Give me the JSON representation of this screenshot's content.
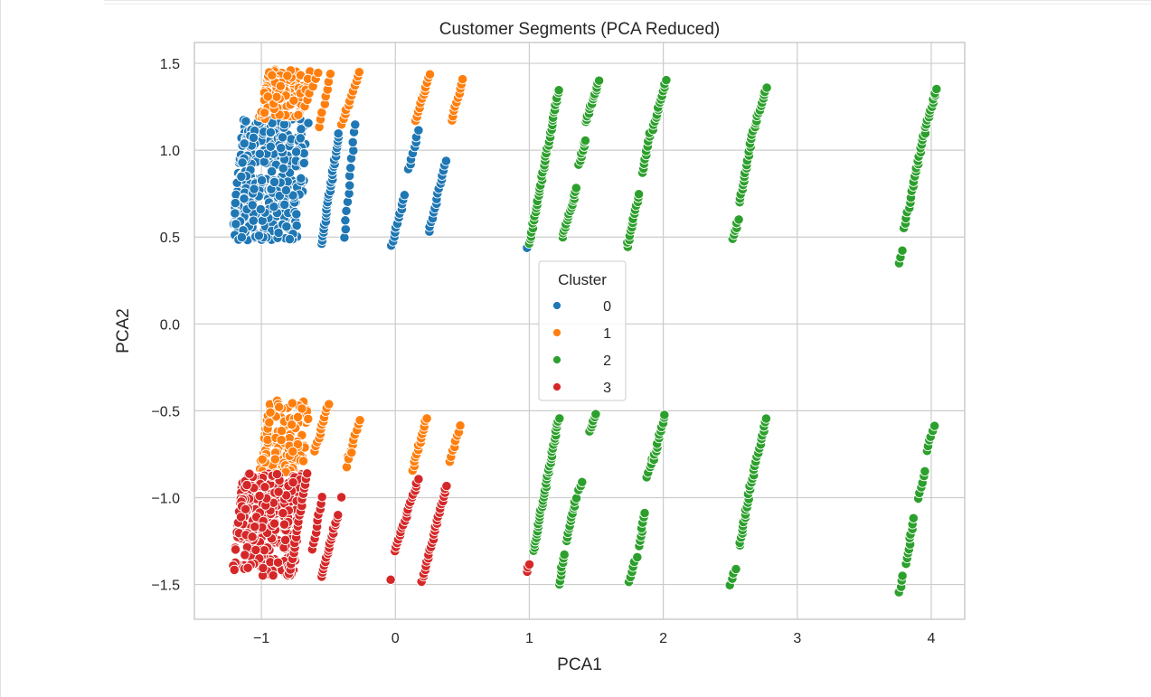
{
  "chart_data": {
    "type": "scatter",
    "title": "Customer Segments (PCA Reduced)",
    "xlabel": "PCA1",
    "ylabel": "PCA2",
    "xlim": [
      -1.5,
      4.25
    ],
    "ylim": [
      -1.7,
      1.62
    ],
    "xticks": [
      -1,
      0,
      1,
      2,
      3,
      4
    ],
    "yticks": [
      -1.5,
      -1.0,
      -0.5,
      0.0,
      0.5,
      1.0,
      1.5
    ],
    "xtick_labels": [
      "−1",
      "0",
      "1",
      "2",
      "3",
      "4"
    ],
    "ytick_labels": [
      "−1.5",
      "−1.0",
      "−0.5",
      "0.0",
      "0.5",
      "1.0",
      "1.5"
    ],
    "grid": true,
    "legend": {
      "title": "Cluster",
      "placement": "center"
    },
    "series": [
      {
        "name": "0",
        "color": "#1f77b4",
        "clusters": [
          {
            "x0": -1.22,
            "x1": -0.72,
            "y0": 0.48,
            "y1": 1.18,
            "n": 360
          }
        ],
        "lines": [
          {
            "x0": -0.55,
            "y0": 0.46,
            "x1": -0.42,
            "y1": 1.1,
            "n": 30
          },
          {
            "x0": -0.38,
            "y0": 0.5,
            "x1": -0.3,
            "y1": 1.15,
            "n": 14
          },
          {
            "x0": -0.03,
            "y0": 0.45,
            "x1": 0.07,
            "y1": 0.74,
            "n": 12
          },
          {
            "x0": 0.1,
            "y0": 0.89,
            "x1": 0.17,
            "y1": 1.11,
            "n": 8
          },
          {
            "x0": 0.25,
            "y0": 0.53,
            "x1": 0.38,
            "y1": 0.94,
            "n": 16
          },
          {
            "x0": 0.98,
            "y0": 0.44,
            "x1": 0.98,
            "y1": 0.44,
            "n": 1
          }
        ]
      },
      {
        "name": "1",
        "color": "#ff7f0e",
        "clusters": [
          {
            "x0": -1.02,
            "x1": -0.7,
            "y0": 1.18,
            "y1": 1.47,
            "n": 120
          },
          {
            "x0": -1.02,
            "x1": -0.7,
            "y0": -0.86,
            "y1": -0.44,
            "n": 140
          }
        ],
        "lines": [
          {
            "x0": -0.68,
            "y0": 1.25,
            "x1": -0.58,
            "y1": 1.45,
            "n": 6
          },
          {
            "x0": -0.57,
            "y0": 1.13,
            "x1": -0.48,
            "y1": 1.44,
            "n": 8
          },
          {
            "x0": -0.4,
            "y0": 1.15,
            "x1": -0.27,
            "y1": 1.45,
            "n": 12
          },
          {
            "x0": 0.15,
            "y0": 1.17,
            "x1": 0.26,
            "y1": 1.44,
            "n": 12
          },
          {
            "x0": 0.42,
            "y0": 1.17,
            "x1": 0.5,
            "y1": 1.41,
            "n": 10
          },
          {
            "x0": -0.6,
            "y0": -0.73,
            "x1": -0.5,
            "y1": -0.46,
            "n": 12
          },
          {
            "x0": -0.35,
            "y0": -0.76,
            "x1": -0.26,
            "y1": -0.55,
            "n": 8
          },
          {
            "x0": -0.36,
            "y0": -0.82,
            "x1": -0.33,
            "y1": -0.74,
            "n": 3
          },
          {
            "x0": 0.13,
            "y0": -0.84,
            "x1": 0.23,
            "y1": -0.54,
            "n": 14
          },
          {
            "x0": 0.41,
            "y0": -0.79,
            "x1": 0.48,
            "y1": -0.59,
            "n": 8
          }
        ]
      },
      {
        "name": "2",
        "color": "#2ca02c",
        "lines": [
          {
            "x0": 1.0,
            "y0": 0.46,
            "x1": 1.22,
            "y1": 1.35,
            "n": 40
          },
          {
            "x0": 1.25,
            "y0": 0.5,
            "x1": 1.35,
            "y1": 0.78,
            "n": 16
          },
          {
            "x0": 1.37,
            "y0": 0.92,
            "x1": 1.42,
            "y1": 1.06,
            "n": 8
          },
          {
            "x0": 1.42,
            "y0": 1.16,
            "x1": 1.52,
            "y1": 1.4,
            "n": 14
          },
          {
            "x0": 1.73,
            "y0": 0.44,
            "x1": 1.82,
            "y1": 0.75,
            "n": 14
          },
          {
            "x0": 1.85,
            "y0": 0.87,
            "x1": 1.9,
            "y1": 1.1,
            "n": 10
          },
          {
            "x0": 1.92,
            "y0": 1.12,
            "x1": 2.02,
            "y1": 1.4,
            "n": 14
          },
          {
            "x0": 2.52,
            "y0": 0.49,
            "x1": 2.56,
            "y1": 0.6,
            "n": 6
          },
          {
            "x0": 2.57,
            "y0": 0.7,
            "x1": 2.67,
            "y1": 1.11,
            "n": 18
          },
          {
            "x0": 2.68,
            "y0": 1.13,
            "x1": 2.77,
            "y1": 1.36,
            "n": 12
          },
          {
            "x0": 3.76,
            "y0": 0.35,
            "x1": 3.78,
            "y1": 0.42,
            "n": 3
          },
          {
            "x0": 3.8,
            "y0": 0.55,
            "x1": 3.87,
            "y1": 0.82,
            "n": 10
          },
          {
            "x0": 3.88,
            "y0": 0.85,
            "x1": 3.95,
            "y1": 1.1,
            "n": 12
          },
          {
            "x0": 3.96,
            "y0": 1.13,
            "x1": 4.04,
            "y1": 1.35,
            "n": 12
          },
          {
            "x0": 1.03,
            "y0": -1.31,
            "x1": 1.22,
            "y1": -0.54,
            "n": 40
          },
          {
            "x0": 1.22,
            "y0": -1.5,
            "x1": 1.26,
            "y1": -1.33,
            "n": 8
          },
          {
            "x0": 1.28,
            "y0": -1.25,
            "x1": 1.35,
            "y1": -1.0,
            "n": 12
          },
          {
            "x0": 1.37,
            "y0": -0.96,
            "x1": 1.4,
            "y1": -0.91,
            "n": 3
          },
          {
            "x0": 1.45,
            "y0": -0.62,
            "x1": 1.5,
            "y1": -0.52,
            "n": 6
          },
          {
            "x0": 1.74,
            "y0": -1.49,
            "x1": 1.8,
            "y1": -1.34,
            "n": 6
          },
          {
            "x0": 1.82,
            "y0": -1.28,
            "x1": 1.86,
            "y1": -1.09,
            "n": 8
          },
          {
            "x0": 1.88,
            "y0": -0.88,
            "x1": 1.93,
            "y1": -0.75,
            "n": 6
          },
          {
            "x0": 1.93,
            "y0": -0.78,
            "x1": 2.01,
            "y1": -0.52,
            "n": 12
          },
          {
            "x0": 2.5,
            "y0": -1.5,
            "x1": 2.54,
            "y1": -1.41,
            "n": 4
          },
          {
            "x0": 2.57,
            "y0": -1.28,
            "x1": 2.66,
            "y1": -0.89,
            "n": 18
          },
          {
            "x0": 2.67,
            "y0": -0.87,
            "x1": 2.77,
            "y1": -0.54,
            "n": 14
          },
          {
            "x0": 3.76,
            "y0": -1.54,
            "x1": 3.79,
            "y1": -1.45,
            "n": 4
          },
          {
            "x0": 3.81,
            "y0": -1.38,
            "x1": 3.87,
            "y1": -1.12,
            "n": 10
          },
          {
            "x0": 3.9,
            "y0": -1.0,
            "x1": 3.95,
            "y1": -0.85,
            "n": 6
          },
          {
            "x0": 3.97,
            "y0": -0.73,
            "x1": 4.02,
            "y1": -0.59,
            "n": 6
          }
        ]
      },
      {
        "name": "3",
        "color": "#d62728",
        "clusters": [
          {
            "x0": -1.22,
            "x1": -0.76,
            "y0": -1.45,
            "y1": -0.86,
            "n": 320
          }
        ],
        "lines": [
          {
            "x0": -0.79,
            "y0": -1.44,
            "x1": -0.66,
            "y1": -0.86,
            "n": 20
          },
          {
            "x0": -0.62,
            "y0": -1.3,
            "x1": -0.55,
            "y1": -1.0,
            "n": 10
          },
          {
            "x0": -0.55,
            "y0": -1.45,
            "x1": -0.43,
            "y1": -1.1,
            "n": 18
          },
          {
            "x0": -0.4,
            "y0": -1.0,
            "x1": -0.4,
            "y1": -1.0,
            "n": 1
          },
          {
            "x0": -0.04,
            "y0": -1.47,
            "x1": -0.04,
            "y1": -1.47,
            "n": 1
          },
          {
            "x0": 0.0,
            "y0": -1.31,
            "x1": 0.17,
            "y1": -0.89,
            "n": 20
          },
          {
            "x0": 0.2,
            "y0": -1.48,
            "x1": 0.38,
            "y1": -0.93,
            "n": 26
          },
          {
            "x0": 0.98,
            "y0": -1.43,
            "x1": 1.0,
            "y1": -1.38,
            "n": 3
          }
        ]
      }
    ]
  }
}
